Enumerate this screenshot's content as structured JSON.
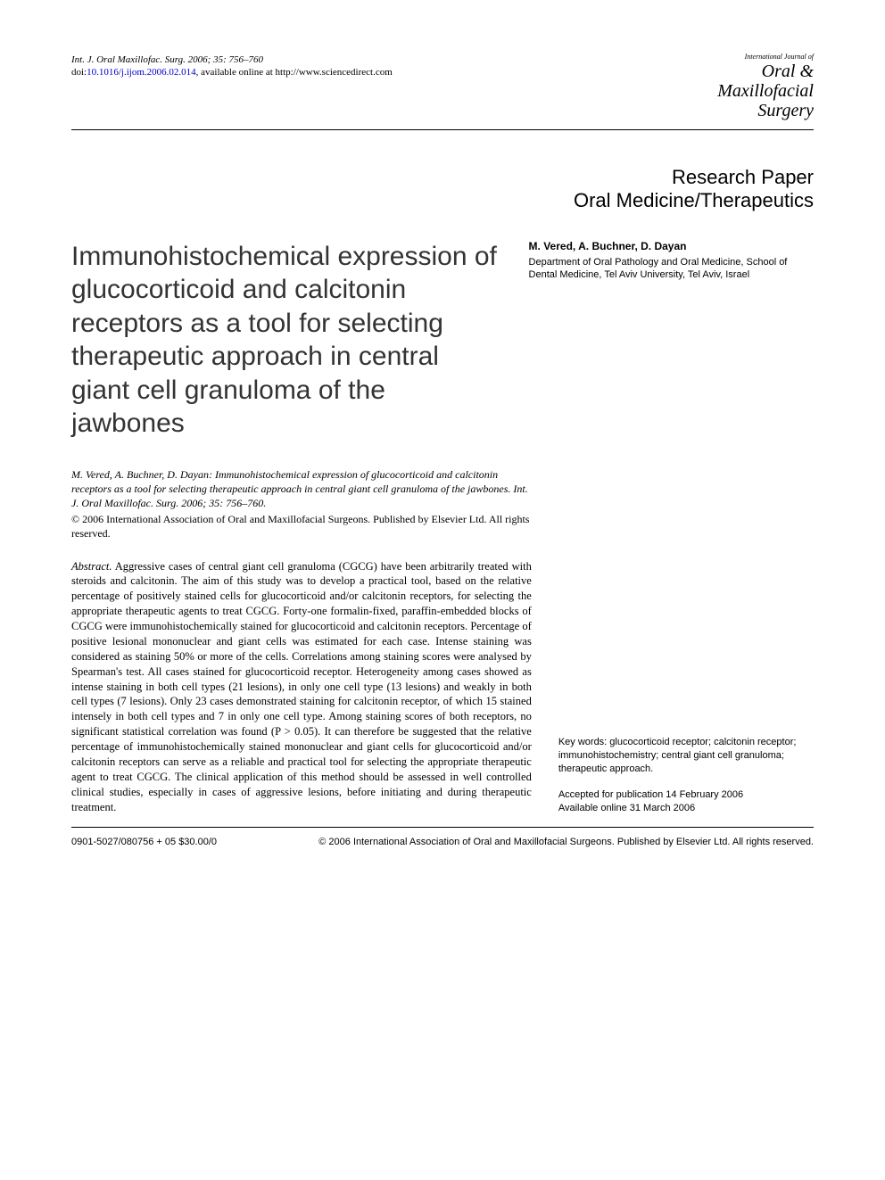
{
  "header": {
    "citation_line1": "Int. J. Oral Maxillofac. Surg. 2006; 35: 756–760",
    "doi_prefix": "doi:",
    "doi": "10.1016/j.ijom.2006.02.014",
    "availability": ", available online at http://www.sciencedirect.com",
    "journal_top": "International Journal of",
    "journal_line1": "Oral &",
    "journal_line2": "Maxillofacial",
    "journal_line3": "Surgery"
  },
  "section": {
    "line1": "Research Paper",
    "line2": "Oral Medicine/Therapeutics"
  },
  "article": {
    "title": "Immunohistochemical expression of glucocorticoid and calcitonin receptors as a tool for selecting therapeutic approach in central giant cell granuloma of the jawbones",
    "authors": "M.  Vered, A.  Buchner, D.  Dayan",
    "affiliation": "Department of Oral Pathology and Oral Medicine, School of Dental Medicine, Tel Aviv University, Tel Aviv, Israel"
  },
  "citation_full": "M. Vered, A. Buchner, D. Dayan: Immunohistochemical expression of glucocorticoid and calcitonin receptors as a tool for selecting therapeutic approach in central giant cell granuloma of the jawbones. Int. J. Oral Maxillofac. Surg. 2006; 35: 756–760.",
  "copyright": "© 2006 International Association of Oral and Maxillofacial Surgeons. Published by Elsevier Ltd. All rights reserved.",
  "abstract": {
    "label": "Abstract.",
    "text": " Aggressive cases of central giant cell granuloma (CGCG) have been arbitrarily treated with steroids and calcitonin. The aim of this study was to develop a practical tool, based on the relative percentage of positively stained cells for glucocorticoid and/or calcitonin receptors, for selecting the appropriate therapeutic agents to treat CGCG. Forty-one formalin-fixed, paraffin-embedded blocks of CGCG were immunohistochemically stained for glucocorticoid and calcitonin receptors. Percentage of positive lesional mononuclear and giant cells was estimated for each case. Intense staining was considered as staining 50% or more of the cells. Correlations among staining scores were analysed by Spearman's test. All cases stained for glucocorticoid receptor. Heterogeneity among cases showed as intense staining in both cell types (21 lesions), in only one cell type (13 lesions) and weakly in both cell types (7 lesions). Only 23 cases demonstrated staining for calcitonin receptor, of which 15 stained intensely in both cell types and 7 in only one cell type. Among staining scores of both receptors, no significant statistical correlation was found (P > 0.05). It can therefore be suggested that the relative percentage of immunohistochemically stained mononuclear and giant cells for glucocorticoid and/or calcitonin receptors can serve as a reliable and practical tool for selecting the appropriate therapeutic agent to treat CGCG. The clinical application of this method should be assessed in well controlled clinical studies, especially in cases of aggressive lesions, before initiating and during therapeutic treatment."
  },
  "keywords": {
    "label": "Key words:",
    "text": " glucocorticoid receptor; calcitonin receptor; immunohistochemistry; central giant cell granuloma; therapeutic approach."
  },
  "dates": {
    "accepted": "Accepted for publication 14 February 2006",
    "online": "Available online 31 March 2006"
  },
  "footer": {
    "left": "0901-5027/080756 + 05 $30.00/0",
    "right": "© 2006 International Association of Oral and Maxillofacial Surgeons. Published by Elsevier Ltd. All rights reserved."
  }
}
